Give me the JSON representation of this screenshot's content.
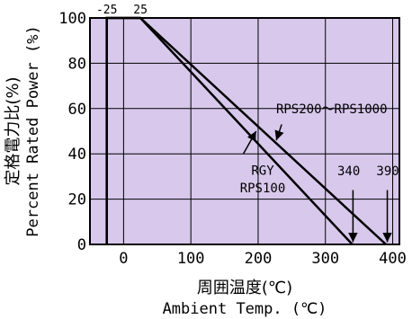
{
  "chart_data": {
    "type": "line",
    "ylabel_jp": "定格電力比(%)",
    "ylabel_en": "Percent Rated Power (%)",
    "xlabel_jp": "周囲温度(℃)",
    "xlabel_en": "Ambient Temp. (℃)",
    "xlim": [
      -50,
      410
    ],
    "ylim": [
      0,
      100
    ],
    "xticks": [
      0,
      100,
      200,
      300,
      400
    ],
    "yticks": [
      0,
      20,
      40,
      60,
      80,
      100
    ],
    "top_tick_labels": [
      "-25",
      "25"
    ],
    "grid": true,
    "plot_background": "#d8c8ec",
    "series": [
      {
        "name": "RPS200〜RPS1000",
        "x": [
          -25,
          -25,
          25,
          390
        ],
        "y": [
          0,
          100,
          100,
          0
        ]
      },
      {
        "name": "RGY\nRPS100",
        "x": [
          -25,
          -25,
          25,
          340
        ],
        "y": [
          0,
          100,
          100,
          0
        ]
      }
    ],
    "annotations": [
      {
        "text": "RPS200〜RPS1000",
        "x": 200,
        "y": 58
      },
      {
        "text": "RGY",
        "x": 180,
        "y": 34
      },
      {
        "text": "RPS100",
        "x": 180,
        "y": 27
      },
      {
        "text": "340",
        "x": 340,
        "y": 29
      },
      {
        "text": "390",
        "x": 390,
        "y": 29
      }
    ]
  }
}
